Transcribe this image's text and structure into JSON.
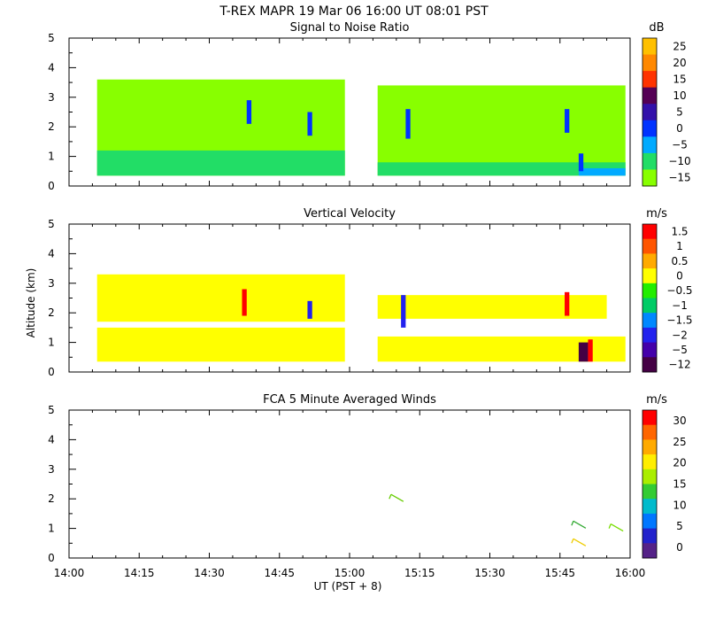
{
  "title": "T-REX   MAPR 19 Mar 06   16:00 UT   08:01   PST",
  "ylabel": "Altitude (km)",
  "xlabel": "UT  (PST + 8)",
  "x_ticks": [
    "14:00",
    "14:15",
    "14:30",
    "14:45",
    "15:00",
    "15:15",
    "15:30",
    "15:45",
    "16:00"
  ],
  "y_ticks": [
    "0",
    "1",
    "2",
    "3",
    "4",
    "5"
  ],
  "colors": {
    "background": "#ffffff",
    "axis": "#000000"
  },
  "chart_data": [
    {
      "type": "heatmap",
      "title": "Signal to Noise Ratio",
      "unit": "dB",
      "xlim": [
        "14:00",
        "16:00"
      ],
      "ylim": [
        0,
        5
      ],
      "colorbar": {
        "labels": [
          "25",
          "20",
          "15",
          "10",
          "5",
          "0",
          "−5",
          "−10",
          "−15"
        ],
        "colors": [
          "#ffc000",
          "#ff8800",
          "#ff3300",
          "#550055",
          "#3311aa",
          "#0033ff",
          "#00aaff",
          "#22dd66",
          "#88ff00"
        ]
      },
      "regions": [
        {
          "x0": "14:06",
          "x1": "14:59",
          "y0": 0.35,
          "y1": 3.6,
          "color": "#88ff00"
        },
        {
          "x0": "15:06",
          "x1": "15:59",
          "y0": 0.35,
          "y1": 3.4,
          "color": "#88ff00"
        },
        {
          "x0": "14:06",
          "x1": "14:59",
          "y0": 0.35,
          "y1": 1.2,
          "color": "#22dd66"
        },
        {
          "x0": "15:06",
          "x1": "15:59",
          "y0": 0.35,
          "y1": 0.8,
          "color": "#22dd66"
        },
        {
          "x0": "15:49",
          "x1": "15:59",
          "y0": 0.35,
          "y1": 0.6,
          "color": "#00aaff"
        },
        {
          "x0": "14:38",
          "x1": "14:39",
          "y0": 2.1,
          "y1": 2.9,
          "color": "#0033ff"
        },
        {
          "x0": "14:51",
          "x1": "14:52",
          "y0": 1.7,
          "y1": 2.5,
          "color": "#0033ff"
        },
        {
          "x0": "15:12",
          "x1": "15:13",
          "y0": 1.6,
          "y1": 2.6,
          "color": "#0033ff"
        },
        {
          "x0": "15:46",
          "x1": "15:47",
          "y0": 1.8,
          "y1": 2.6,
          "color": "#0033ff"
        },
        {
          "x0": "15:49",
          "x1": "15:50",
          "y0": 0.5,
          "y1": 1.1,
          "color": "#0033ff"
        }
      ]
    },
    {
      "type": "heatmap",
      "title": "Vertical Velocity",
      "unit": "m/s",
      "xlim": [
        "14:00",
        "16:00"
      ],
      "ylim": [
        0,
        5
      ],
      "colorbar": {
        "labels": [
          "1.5",
          "1",
          "0.5",
          "0",
          "−0.5",
          "−1",
          "−1.5",
          "−2",
          "−5",
          "−12"
        ],
        "colors": [
          "#ff0000",
          "#ff5500",
          "#ffaa00",
          "#ffff00",
          "#22ee00",
          "#00cc66",
          "#0088ff",
          "#2222ee",
          "#4400aa",
          "#440044"
        ]
      },
      "regions": [
        {
          "x0": "14:06",
          "x1": "14:59",
          "y0": 0.35,
          "y1": 1.5,
          "color": "#ffff00"
        },
        {
          "x0": "15:06",
          "x1": "15:59",
          "y0": 0.35,
          "y1": 1.2,
          "color": "#ffff00"
        },
        {
          "x0": "14:06",
          "x1": "14:59",
          "y0": 1.7,
          "y1": 3.3,
          "color": "#ffff00"
        },
        {
          "x0": "15:06",
          "x1": "15:55",
          "y0": 1.8,
          "y1": 2.6,
          "color": "#ffff00"
        },
        {
          "x0": "14:37",
          "x1": "14:38",
          "y0": 1.9,
          "y1": 2.8,
          "color": "#ff0000"
        },
        {
          "x0": "14:51",
          "x1": "14:52",
          "y0": 1.8,
          "y1": 2.4,
          "color": "#2222ee"
        },
        {
          "x0": "15:11",
          "x1": "15:12",
          "y0": 1.5,
          "y1": 2.6,
          "color": "#2222ee"
        },
        {
          "x0": "15:46",
          "x1": "15:47",
          "y0": 1.9,
          "y1": 2.7,
          "color": "#ff0000"
        },
        {
          "x0": "15:49",
          "x1": "15:51",
          "y0": 0.35,
          "y1": 1.0,
          "color": "#440044"
        },
        {
          "x0": "15:51",
          "x1": "15:52",
          "y0": 0.35,
          "y1": 1.1,
          "color": "#ff0000"
        }
      ]
    },
    {
      "type": "scatter",
      "title": "FCA 5 Minute Averaged Winds",
      "unit": "m/s",
      "xlim": [
        "14:00",
        "16:00"
      ],
      "ylim": [
        0,
        5
      ],
      "colorbar": {
        "labels": [
          "30",
          "25",
          "20",
          "15",
          "10",
          "5",
          "0"
        ],
        "colors": [
          "#ff0000",
          "#ff6600",
          "#ffaa00",
          "#ffee00",
          "#aaee00",
          "#33cc33",
          "#00bbcc",
          "#0077ff",
          "#2222cc",
          "#552288"
        ]
      },
      "barbs": [
        {
          "x": "15:10",
          "y": 2.0,
          "color": "#66cc00"
        },
        {
          "x": "15:49",
          "y": 0.5,
          "color": "#eecc00"
        },
        {
          "x": "15:49",
          "y": 1.1,
          "color": "#33aa33"
        },
        {
          "x": "15:57",
          "y": 1.0,
          "color": "#77dd00"
        }
      ]
    }
  ]
}
